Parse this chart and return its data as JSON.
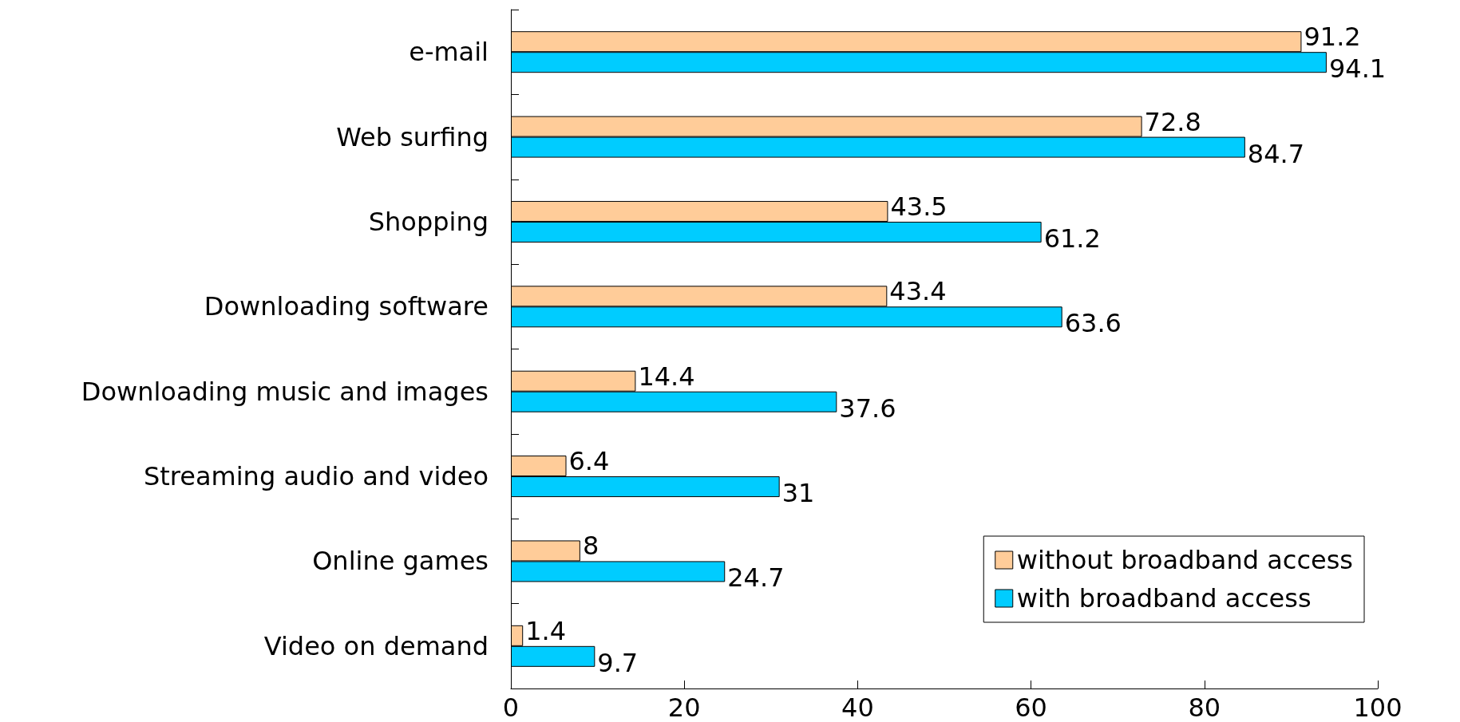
{
  "chart_data": {
    "type": "bar",
    "orientation": "horizontal",
    "categories": [
      "e-mail",
      "Web surfing",
      "Shopping",
      "Downloading software",
      "Downloading music and images",
      "Streaming audio and video",
      "Online games",
      "Video on demand"
    ],
    "series": [
      {
        "name": "without broadband access",
        "color": "#ffcc99",
        "values": [
          91.2,
          72.8,
          43.5,
          43.4,
          14.4,
          6.4,
          8,
          1.4
        ]
      },
      {
        "name": "with broadband access",
        "color": "#00ccff",
        "values": [
          94.1,
          84.7,
          61.2,
          63.6,
          37.6,
          31,
          24.7,
          9.7
        ]
      }
    ],
    "xlim": [
      0,
      100
    ],
    "xticks": [
      0,
      20,
      40,
      60,
      80,
      100
    ],
    "grid": false,
    "legend": "bottom right",
    "data_labels": true
  }
}
